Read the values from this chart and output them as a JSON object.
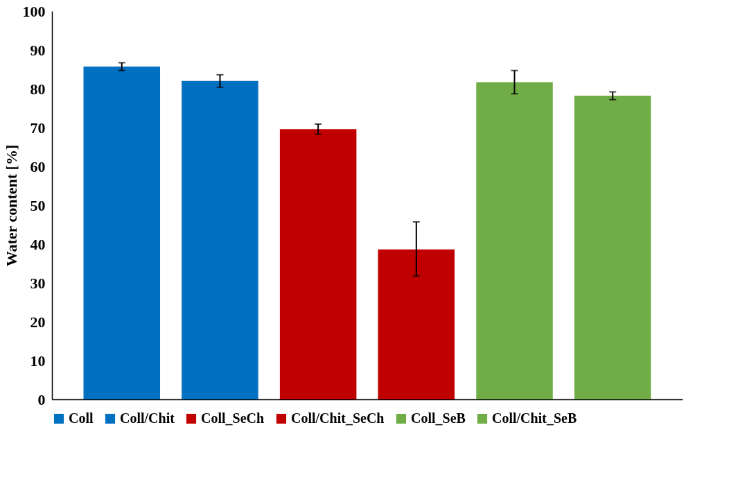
{
  "chart_data": {
    "type": "bar",
    "ylabel": "Water content [%]",
    "categories": [
      null
    ],
    "series": [
      {
        "name": "Coll",
        "color": "#0070c0",
        "values": [
          85.7
        ],
        "errors": [
          1.0
        ]
      },
      {
        "name": "Coll/Chit",
        "color": "#0070c0",
        "values": [
          82.0
        ],
        "errors": [
          1.6
        ]
      },
      {
        "name": "Coll_SeCh",
        "color": "#c00000",
        "values": [
          69.6
        ],
        "errors": [
          1.3
        ]
      },
      {
        "name": "Coll/Chit_SeCh",
        "color": "#c00000",
        "values": [
          38.6
        ],
        "errors": [
          [
            31.8,
            45.7
          ]
        ]
      },
      {
        "name": "Coll_SeB",
        "color": "#70ad47",
        "values": [
          81.7
        ],
        "errors": [
          3.0
        ]
      },
      {
        "name": "Coll/Chit_SeB",
        "color": "#70ad47",
        "values": [
          78.2
        ],
        "errors": [
          1.0
        ]
      }
    ],
    "ylim": [
      0,
      100
    ],
    "yticks": [
      0,
      10,
      20,
      30,
      40,
      50,
      60,
      70,
      80,
      90,
      100
    ],
    "grid": false,
    "legend": "bottom",
    "tick_labels": "y"
  }
}
